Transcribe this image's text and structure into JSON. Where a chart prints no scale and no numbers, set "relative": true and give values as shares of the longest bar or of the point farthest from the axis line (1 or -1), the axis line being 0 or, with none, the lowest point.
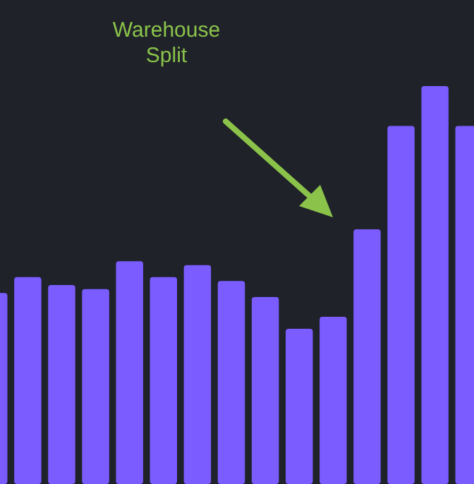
{
  "chart_data": {
    "type": "bar",
    "relative": true,
    "categories": [
      null,
      null,
      null,
      null,
      null,
      null,
      null,
      null,
      null,
      null,
      null,
      null,
      null,
      null,
      null
    ],
    "values": [
      0.48,
      0.52,
      0.5,
      0.49,
      0.56,
      0.52,
      0.55,
      0.51,
      0.47,
      0.39,
      0.42,
      0.64,
      0.9,
      1,
      0.9
    ],
    "color": "#7a5cff",
    "annotations": [
      "Warehouse Split"
    ]
  }
}
